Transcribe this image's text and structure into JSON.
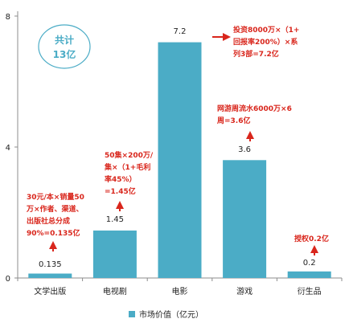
{
  "chart_data": {
    "type": "bar",
    "categories": [
      "文学出版",
      "电视剧",
      "电影",
      "游戏",
      "衍生品"
    ],
    "series": [
      {
        "name": "市场价值（亿元）",
        "values": [
          0.135,
          1.45,
          7.2,
          3.6,
          0.2
        ]
      }
    ],
    "value_labels": [
      "0.135",
      "1.45",
      "7.2",
      "3.6",
      "0.2"
    ],
    "ylim": [
      0,
      8
    ],
    "yticks": [
      0,
      4,
      8
    ],
    "grid": false,
    "legend_position": "bottom-center",
    "annotations": [
      [
        "30元/本×销量50",
        "万×作者、渠道、",
        "出版社总分成",
        "90%=0.135亿"
      ],
      [
        "50集×200万/",
        "集×（1+毛利",
        "率45%）",
        "=1.45亿"
      ],
      [
        "投资8000万×（1+",
        "回报率200%）×系",
        "列3部=7.2亿"
      ],
      [
        "网游周流水6000万×6",
        "周=3.6亿"
      ],
      [
        "授权0.2亿"
      ]
    ],
    "total_badge": {
      "line1": "共计",
      "line2": "13亿"
    },
    "colors": {
      "bar": "#4bacc6",
      "annotation": "#d9261c",
      "axis": "#8c8c8c",
      "text": "#222222",
      "badge_border": "#4bacc6",
      "badge_text": "#4bacc6"
    }
  }
}
